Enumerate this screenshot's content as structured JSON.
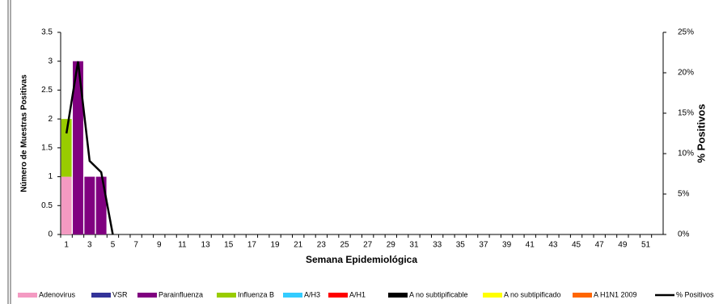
{
  "chart_data": {
    "type": "bar",
    "stacked": true,
    "y_label": "Número de Muestras Positivas",
    "y2_label": "% Positivos",
    "x_label": "Semana Epidemiológica",
    "categories": [
      1,
      null,
      3,
      null,
      5,
      null,
      7,
      null,
      9,
      null,
      11,
      null,
      13,
      null,
      15,
      null,
      17,
      null,
      19,
      null,
      21,
      null,
      23,
      null,
      25,
      null,
      27,
      null,
      29,
      null,
      31,
      null,
      33,
      null,
      35,
      null,
      37,
      null,
      39,
      null,
      41,
      null,
      43,
      null,
      45,
      null,
      47,
      null,
      49,
      null,
      51,
      null
    ],
    "ylim": [
      0,
      3.5
    ],
    "yticks": [
      0,
      0.5,
      1,
      1.5,
      2,
      2.5,
      3,
      3.5
    ],
    "y2lim": [
      0,
      25
    ],
    "y2ticks": [
      {
        "value": 0,
        "label": "0%"
      },
      {
        "value": 5,
        "label": "5%"
      },
      {
        "value": 10,
        "label": "10%"
      },
      {
        "value": 15,
        "label": "15%"
      },
      {
        "value": 20,
        "label": "20%"
      },
      {
        "value": 25,
        "label": "25%"
      }
    ],
    "series": [
      {
        "name": "Adenovirus",
        "color": "#f49ac2",
        "values": [
          1,
          0,
          0,
          0,
          0,
          0,
          0,
          0,
          0,
          0,
          0,
          0,
          0,
          0,
          0,
          0,
          0,
          0,
          0,
          0,
          0,
          0,
          0,
          0,
          0,
          0,
          0,
          0,
          0,
          0,
          0,
          0,
          0,
          0,
          0,
          0,
          0,
          0,
          0,
          0,
          0,
          0,
          0,
          0,
          0,
          0,
          0,
          0,
          0,
          0,
          0,
          0
        ]
      },
      {
        "name": "VSR",
        "color": "#333399",
        "values": [
          0,
          0,
          0,
          0,
          0,
          0,
          0,
          0,
          0,
          0,
          0,
          0,
          0,
          0,
          0,
          0,
          0,
          0,
          0,
          0,
          0,
          0,
          0,
          0,
          0,
          0,
          0,
          0,
          0,
          0,
          0,
          0,
          0,
          0,
          0,
          0,
          0,
          0,
          0,
          0,
          0,
          0,
          0,
          0,
          0,
          0,
          0,
          0,
          0,
          0,
          0,
          0
        ]
      },
      {
        "name": "Parainfluenza",
        "color": "#800080",
        "values": [
          0,
          3,
          1,
          1,
          0,
          0,
          0,
          0,
          0,
          0,
          0,
          0,
          0,
          0,
          0,
          0,
          0,
          0,
          0,
          0,
          0,
          0,
          0,
          0,
          0,
          0,
          0,
          0,
          0,
          0,
          0,
          0,
          0,
          0,
          0,
          0,
          0,
          0,
          0,
          0,
          0,
          0,
          0,
          0,
          0,
          0,
          0,
          0,
          0,
          0,
          0,
          0
        ]
      },
      {
        "name": "Influenza  B",
        "color": "#99cc00",
        "values": [
          1,
          0,
          0,
          0,
          0,
          0,
          0,
          0,
          0,
          0,
          0,
          0,
          0,
          0,
          0,
          0,
          0,
          0,
          0,
          0,
          0,
          0,
          0,
          0,
          0,
          0,
          0,
          0,
          0,
          0,
          0,
          0,
          0,
          0,
          0,
          0,
          0,
          0,
          0,
          0,
          0,
          0,
          0,
          0,
          0,
          0,
          0,
          0,
          0,
          0,
          0,
          0
        ]
      },
      {
        "name": "A/H3",
        "color": "#33ccff",
        "values": [
          0,
          0,
          0,
          0,
          0,
          0,
          0,
          0,
          0,
          0,
          0,
          0,
          0,
          0,
          0,
          0,
          0,
          0,
          0,
          0,
          0,
          0,
          0,
          0,
          0,
          0,
          0,
          0,
          0,
          0,
          0,
          0,
          0,
          0,
          0,
          0,
          0,
          0,
          0,
          0,
          0,
          0,
          0,
          0,
          0,
          0,
          0,
          0,
          0,
          0,
          0,
          0
        ]
      },
      {
        "name": "A/H1",
        "color": "#ff0000",
        "values": [
          0,
          0,
          0,
          0,
          0,
          0,
          0,
          0,
          0,
          0,
          0,
          0,
          0,
          0,
          0,
          0,
          0,
          0,
          0,
          0,
          0,
          0,
          0,
          0,
          0,
          0,
          0,
          0,
          0,
          0,
          0,
          0,
          0,
          0,
          0,
          0,
          0,
          0,
          0,
          0,
          0,
          0,
          0,
          0,
          0,
          0,
          0,
          0,
          0,
          0,
          0,
          0
        ]
      },
      {
        "name": "A no subtipificable",
        "color": "#000000",
        "values": [
          0,
          0,
          0,
          0,
          0,
          0,
          0,
          0,
          0,
          0,
          0,
          0,
          0,
          0,
          0,
          0,
          0,
          0,
          0,
          0,
          0,
          0,
          0,
          0,
          0,
          0,
          0,
          0,
          0,
          0,
          0,
          0,
          0,
          0,
          0,
          0,
          0,
          0,
          0,
          0,
          0,
          0,
          0,
          0,
          0,
          0,
          0,
          0,
          0,
          0,
          0,
          0
        ]
      },
      {
        "name": "A no subtipificado",
        "color": "#ffff00",
        "values": [
          0,
          0,
          0,
          0,
          0,
          0,
          0,
          0,
          0,
          0,
          0,
          0,
          0,
          0,
          0,
          0,
          0,
          0,
          0,
          0,
          0,
          0,
          0,
          0,
          0,
          0,
          0,
          0,
          0,
          0,
          0,
          0,
          0,
          0,
          0,
          0,
          0,
          0,
          0,
          0,
          0,
          0,
          0,
          0,
          0,
          0,
          0,
          0,
          0,
          0,
          0,
          0
        ]
      },
      {
        "name": "A H1N1  2009",
        "color": "#ff6600",
        "values": [
          0,
          0,
          0,
          0,
          0,
          0,
          0,
          0,
          0,
          0,
          0,
          0,
          0,
          0,
          0,
          0,
          0,
          0,
          0,
          0,
          0,
          0,
          0,
          0,
          0,
          0,
          0,
          0,
          0,
          0,
          0,
          0,
          0,
          0,
          0,
          0,
          0,
          0,
          0,
          0,
          0,
          0,
          0,
          0,
          0,
          0,
          0,
          0,
          0,
          0,
          0,
          0
        ]
      },
      {
        "name": "% Positivos",
        "color": "#000000",
        "type": "line",
        "axis": "y2",
        "values": [
          12.5,
          21.4,
          9.1,
          7.7,
          0,
          null,
          null,
          null,
          null,
          null,
          null,
          null,
          null,
          null,
          null,
          null,
          null,
          null,
          null,
          null,
          null,
          null,
          null,
          null,
          null,
          null,
          null,
          null,
          null,
          null,
          null,
          null,
          null,
          null,
          null,
          null,
          null,
          null,
          null,
          null,
          null,
          null,
          null,
          null,
          null,
          null,
          null,
          null,
          null,
          null,
          null,
          null
        ]
      }
    ]
  }
}
